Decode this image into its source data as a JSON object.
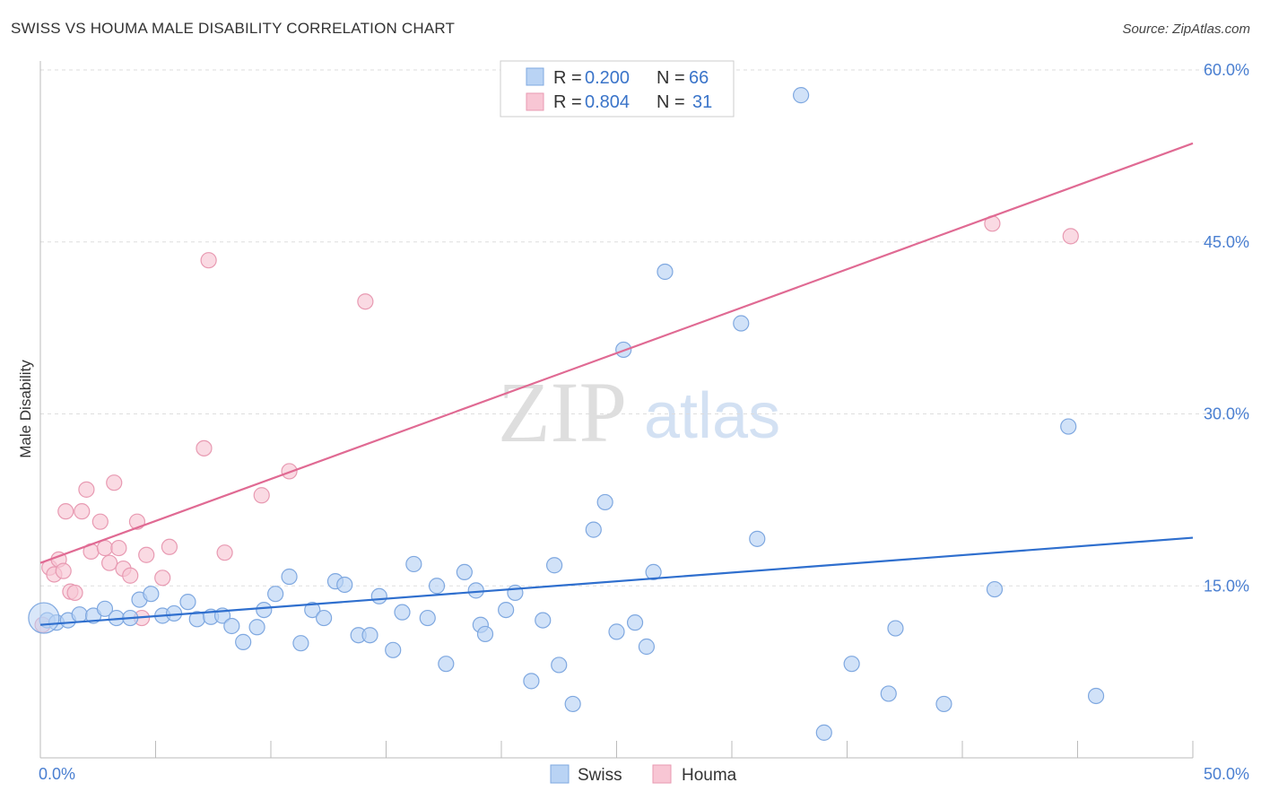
{
  "header": {
    "title": "SWISS VS HOUMA MALE DISABILITY CORRELATION CHART",
    "source": "Source: ZipAtlas.com"
  },
  "watermark": {
    "zip": "ZIP",
    "atlas": "atlas"
  },
  "legend": {
    "swiss": {
      "r_label": "R =",
      "r_value": "0.200",
      "n_label": "N =",
      "n_value": "66"
    },
    "houma": {
      "r_label": "R =",
      "r_value": "0.804",
      "n_label": "N =",
      "n_value": "31"
    }
  },
  "bottom_legend": {
    "swiss": "Swiss",
    "houma": "Houma"
  },
  "colors": {
    "swiss_fill": "#b9d3f4",
    "swiss_stroke": "#7fa8e0",
    "swiss_line": "#2f6fce",
    "houma_fill": "#f8c6d4",
    "houma_stroke": "#e89ab2",
    "houma_line": "#e06a93",
    "grid": "#dddddd",
    "tick_text": "#4a7fd1"
  },
  "chart_data": {
    "type": "scatter",
    "title": "SWISS VS HOUMA MALE DISABILITY CORRELATION CHART",
    "xlabel": "",
    "ylabel": "Male Disability",
    "xlim": [
      0,
      50
    ],
    "ylim": [
      0,
      60
    ],
    "x_tick_labels": [
      "0.0%",
      "50.0%"
    ],
    "y_tick_labels": [
      "15.0%",
      "30.0%",
      "45.0%",
      "60.0%"
    ],
    "y_ticks": [
      15,
      30,
      45,
      60
    ],
    "grid": true,
    "legend_position": "top-center",
    "series": [
      {
        "name": "Swiss",
        "r": 0.2,
        "n": 66,
        "trend": {
          "x0": 0,
          "y0": 11.6,
          "x1": 50,
          "y1": 19.2
        },
        "points": [
          [
            0.3,
            12.0
          ],
          [
            0.7,
            11.8
          ],
          [
            1.2,
            12.0
          ],
          [
            1.7,
            12.5
          ],
          [
            2.3,
            12.4
          ],
          [
            2.8,
            13.0
          ],
          [
            3.3,
            12.2
          ],
          [
            3.9,
            12.2
          ],
          [
            4.3,
            13.8
          ],
          [
            4.8,
            14.3
          ],
          [
            5.3,
            12.4
          ],
          [
            5.8,
            12.6
          ],
          [
            6.4,
            13.6
          ],
          [
            6.8,
            12.1
          ],
          [
            7.4,
            12.3
          ],
          [
            7.9,
            12.4
          ],
          [
            8.3,
            11.5
          ],
          [
            8.8,
            10.1
          ],
          [
            9.4,
            11.4
          ],
          [
            9.7,
            12.9
          ],
          [
            10.2,
            14.3
          ],
          [
            10.8,
            15.8
          ],
          [
            11.3,
            10.0
          ],
          [
            11.8,
            12.9
          ],
          [
            12.3,
            12.2
          ],
          [
            12.8,
            15.4
          ],
          [
            13.2,
            15.1
          ],
          [
            13.8,
            10.7
          ],
          [
            14.3,
            10.7
          ],
          [
            14.7,
            14.1
          ],
          [
            15.3,
            9.4
          ],
          [
            15.7,
            12.7
          ],
          [
            16.2,
            16.9
          ],
          [
            16.8,
            12.2
          ],
          [
            17.2,
            15.0
          ],
          [
            17.6,
            8.2
          ],
          [
            18.4,
            16.2
          ],
          [
            18.9,
            14.6
          ],
          [
            19.1,
            11.6
          ],
          [
            19.3,
            10.8
          ],
          [
            20.2,
            12.9
          ],
          [
            20.6,
            14.4
          ],
          [
            21.3,
            6.7
          ],
          [
            21.8,
            12.0
          ],
          [
            22.3,
            16.8
          ],
          [
            22.5,
            8.1
          ],
          [
            23.1,
            4.7
          ],
          [
            24.0,
            19.9
          ],
          [
            24.5,
            22.3
          ],
          [
            25.0,
            11.0
          ],
          [
            25.3,
            35.6
          ],
          [
            25.8,
            11.8
          ],
          [
            26.3,
            9.7
          ],
          [
            26.6,
            16.2
          ],
          [
            27.1,
            42.4
          ],
          [
            30.4,
            37.9
          ],
          [
            31.1,
            19.1
          ],
          [
            33.0,
            57.8
          ],
          [
            34.0,
            2.2
          ],
          [
            35.2,
            8.2
          ],
          [
            36.8,
            5.6
          ],
          [
            37.1,
            11.3
          ],
          [
            39.2,
            4.7
          ],
          [
            41.4,
            14.7
          ],
          [
            44.6,
            28.9
          ],
          [
            45.8,
            5.4
          ]
        ]
      },
      {
        "name": "Houma",
        "r": 0.804,
        "n": 31,
        "trend": {
          "x0": 0,
          "y0": 17.0,
          "x1": 50,
          "y1": 53.6
        },
        "points": [
          [
            0.1,
            11.6
          ],
          [
            0.4,
            16.6
          ],
          [
            0.6,
            16.0
          ],
          [
            0.8,
            17.3
          ],
          [
            1.0,
            16.3
          ],
          [
            1.1,
            21.5
          ],
          [
            1.3,
            14.5
          ],
          [
            1.5,
            14.4
          ],
          [
            1.8,
            21.5
          ],
          [
            2.0,
            23.4
          ],
          [
            2.2,
            18.0
          ],
          [
            2.6,
            20.6
          ],
          [
            2.8,
            18.3
          ],
          [
            3.0,
            17.0
          ],
          [
            3.2,
            24.0
          ],
          [
            3.4,
            18.3
          ],
          [
            3.6,
            16.5
          ],
          [
            3.9,
            15.9
          ],
          [
            4.2,
            20.6
          ],
          [
            4.4,
            12.2
          ],
          [
            4.6,
            17.7
          ],
          [
            5.3,
            15.7
          ],
          [
            5.6,
            18.4
          ],
          [
            7.1,
            27.0
          ],
          [
            7.3,
            43.4
          ],
          [
            8.0,
            17.9
          ],
          [
            9.6,
            22.9
          ],
          [
            10.8,
            25.0
          ],
          [
            14.1,
            39.8
          ],
          [
            41.3,
            46.6
          ],
          [
            44.7,
            45.5
          ]
        ]
      }
    ]
  }
}
